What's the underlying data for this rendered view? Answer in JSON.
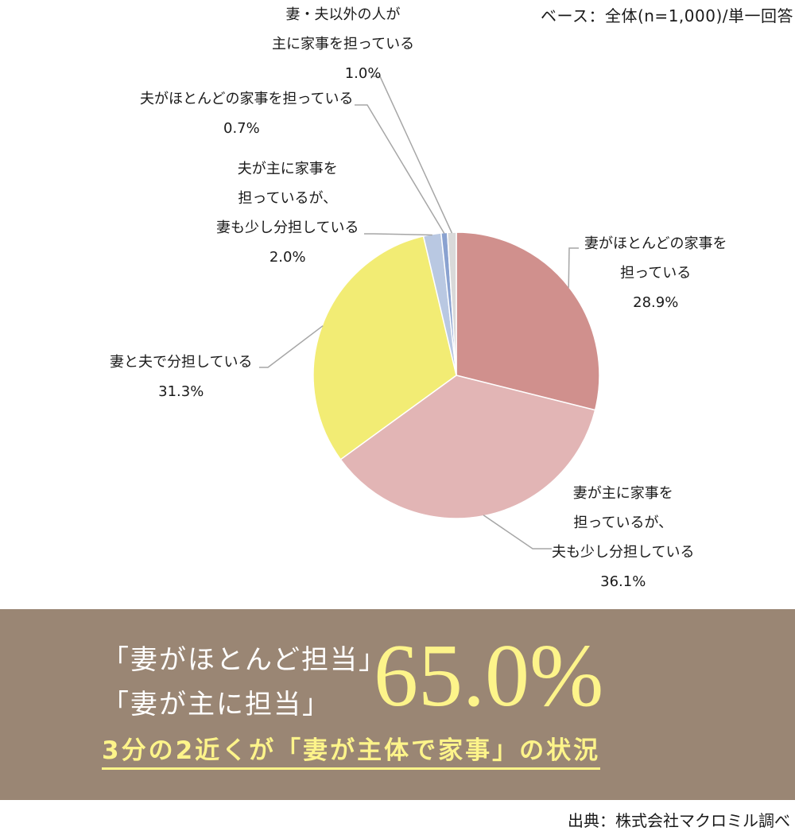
{
  "base_note": "ベース：全体(n=1,000)/単一回答",
  "chart_data": {
    "type": "pie",
    "start": "12 o'clock, clockwise",
    "slices": [
      {
        "label_lines": [
          "妻がほとんどの家事を",
          "担っている"
        ],
        "value": 28.9,
        "display": "28.9%",
        "color": "#d0908d"
      },
      {
        "label_lines": [
          "妻が主に家事を",
          "担っているが、",
          "夫も少し分担している"
        ],
        "value": 36.1,
        "display": "36.1%",
        "color": "#e2b5b5"
      },
      {
        "label_lines": [
          "妻と夫で分担している"
        ],
        "value": 31.3,
        "display": "31.3%",
        "color": "#f2ec74"
      },
      {
        "label_lines": [
          "夫が主に家事を",
          "担っているが、",
          "妻も少し分担している"
        ],
        "value": 2.0,
        "display": "2.0%",
        "color": "#b9c8e2"
      },
      {
        "label_lines": [
          "夫がほとんどの家事を担っている"
        ],
        "value": 0.7,
        "display": "0.7%",
        "color": "#8aa2d0"
      },
      {
        "label_lines": [
          "妻・夫以外の人が",
          "主に家事を担っている"
        ],
        "value": 1.0,
        "display": "1.0%",
        "color": "#d9d9d9"
      }
    ]
  },
  "summary": {
    "quote1": "「妻がほとんど担当」",
    "quote2": "「妻が主に担当」",
    "big_number": "65.0%",
    "highlight": "3分の2近くが「妻が主体で家事」の状況",
    "text_color": "#fdf48a",
    "band_color": "#9a8674"
  },
  "source": "出典：株式会社マクロミル調べ"
}
